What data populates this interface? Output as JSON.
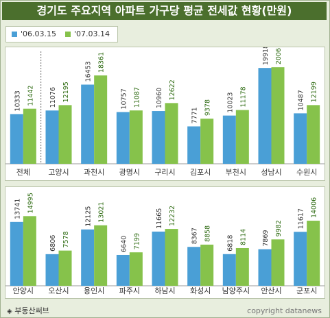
{
  "title": "경기도 주요지역 아파트 가구당 평균 전세값 현황(만원)",
  "legend": [
    {
      "label": "'06.03.15",
      "color": "#4a9fd6"
    },
    {
      "label": "'07.03.14",
      "color": "#86c24b"
    }
  ],
  "footer": {
    "left": "부동산써브",
    "left_icon": "diamond-icon",
    "right": "copyright datanews"
  },
  "chart_data": [
    {
      "type": "bar",
      "categories": [
        "전체",
        "고양시",
        "과천시",
        "광명시",
        "구리시",
        "김포시",
        "부천시",
        "성남시",
        "수원시"
      ],
      "series": [
        {
          "name": "'06.03.15",
          "values": [
            10333,
            11076,
            16453,
            10757,
            10960,
            7771,
            10023,
            19918,
            10487
          ]
        },
        {
          "name": "'07.03.14",
          "values": [
            11442,
            12195,
            18361,
            11087,
            12622,
            9378,
            11178,
            20061,
            12199
          ]
        }
      ],
      "ylim": [
        0,
        23500
      ]
    },
    {
      "type": "bar",
      "categories": [
        "안양시",
        "오산시",
        "용인시",
        "파주시",
        "하남시",
        "화성시",
        "남양주시",
        "안산시",
        "군포시"
      ],
      "series": [
        {
          "name": "'06.03.15",
          "values": [
            13741,
            6806,
            12125,
            6640,
            11665,
            8367,
            6818,
            7869,
            11617
          ]
        },
        {
          "name": "'07.03.14",
          "values": [
            14995,
            7578,
            13021,
            7199,
            12232,
            8858,
            8114,
            9982,
            14006
          ]
        }
      ],
      "ylim": [
        0,
        20500
      ]
    }
  ]
}
